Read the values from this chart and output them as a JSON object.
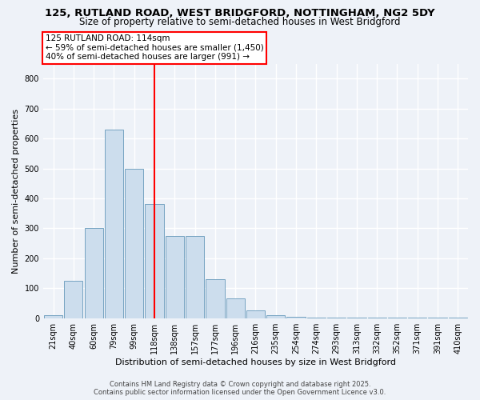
{
  "title": "125, RUTLAND ROAD, WEST BRIDGFORD, NOTTINGHAM, NG2 5DY",
  "subtitle": "Size of property relative to semi-detached houses in West Bridgford",
  "xlabel": "Distribution of semi-detached houses by size in West Bridgford",
  "ylabel": "Number of semi-detached properties",
  "categories": [
    "21sqm",
    "40sqm",
    "60sqm",
    "79sqm",
    "99sqm",
    "118sqm",
    "138sqm",
    "157sqm",
    "177sqm",
    "196sqm",
    "216sqm",
    "235sqm",
    "254sqm",
    "274sqm",
    "293sqm",
    "313sqm",
    "332sqm",
    "352sqm",
    "371sqm",
    "391sqm",
    "410sqm"
  ],
  "values": [
    10,
    125,
    300,
    630,
    500,
    380,
    275,
    275,
    130,
    65,
    25,
    10,
    5,
    3,
    3,
    2,
    2,
    2,
    1,
    1,
    1
  ],
  "bar_color": "#ccdded",
  "bar_edge_color": "#6699bb",
  "vline_x": 5,
  "vline_color": "red",
  "annotation_title": "125 RUTLAND ROAD: 114sqm",
  "annotation_line1": "← 59% of semi-detached houses are smaller (1,450)",
  "annotation_line2": "40% of semi-detached houses are larger (991) →",
  "annotation_box_color": "white",
  "annotation_box_edge": "red",
  "ylim": [
    0,
    850
  ],
  "yticks": [
    0,
    100,
    200,
    300,
    400,
    500,
    600,
    700,
    800
  ],
  "footer_line1": "Contains HM Land Registry data © Crown copyright and database right 2025.",
  "footer_line2": "Contains public sector information licensed under the Open Government Licence v3.0.",
  "bg_color": "#eef2f8",
  "plot_bg_color": "#eef2f8",
  "grid_color": "#ffffff",
  "title_fontsize": 9.5,
  "subtitle_fontsize": 8.5,
  "axis_label_fontsize": 8,
  "tick_fontsize": 7,
  "footer_fontsize": 6
}
